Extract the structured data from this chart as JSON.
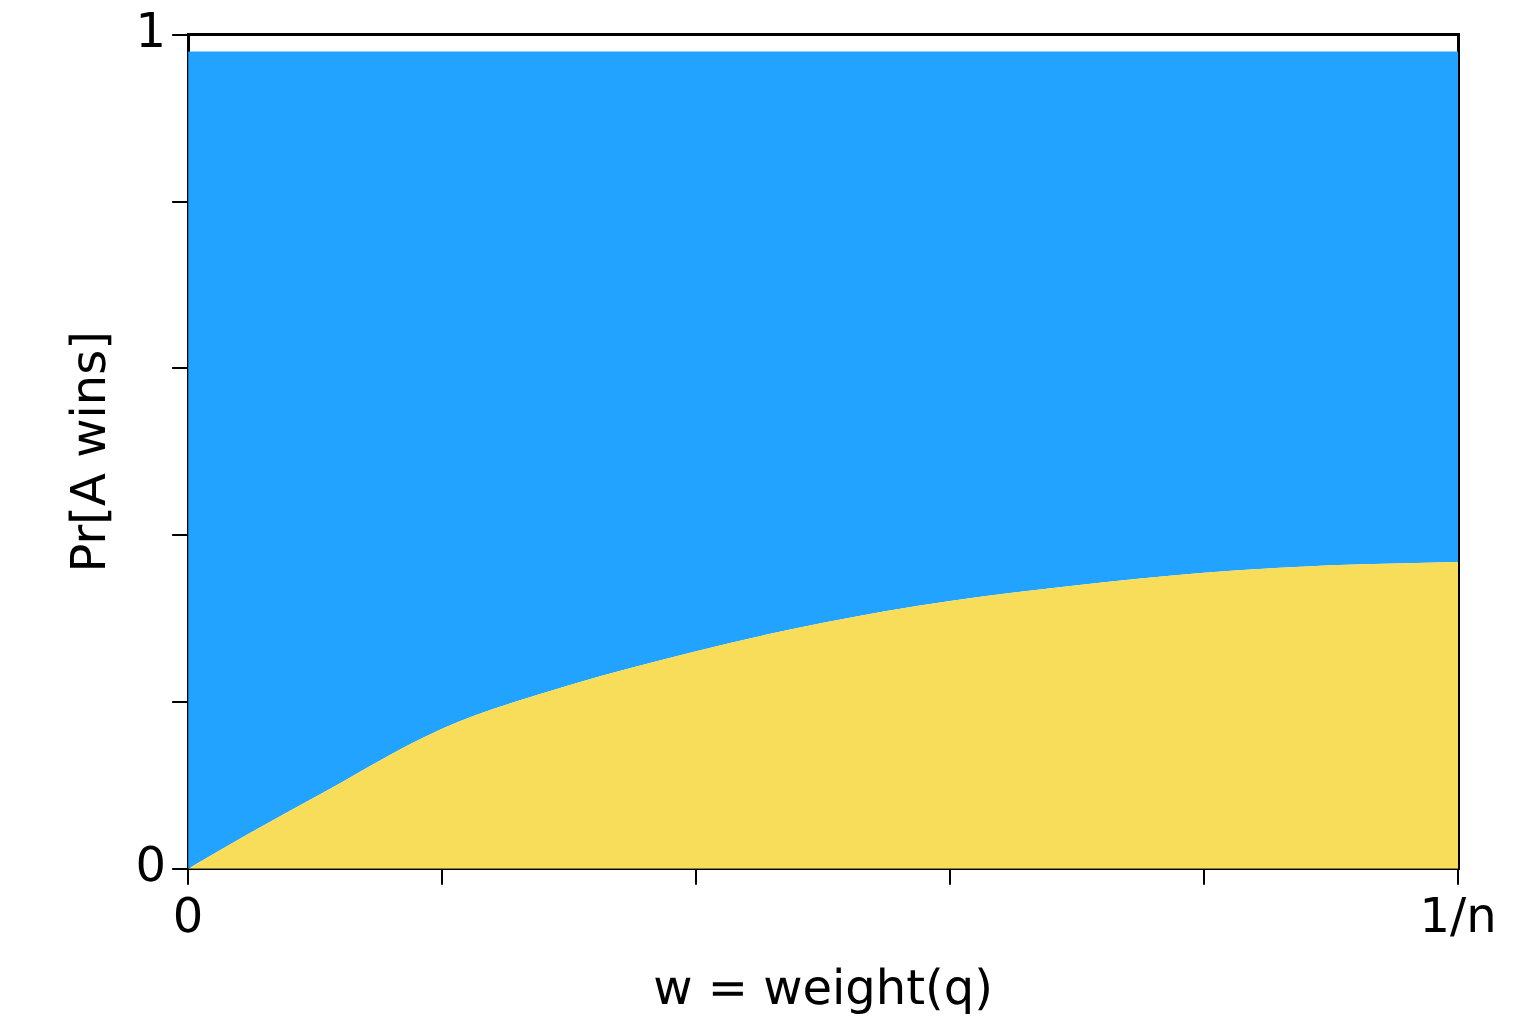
{
  "chart_data": {
    "type": "area",
    "xlabel": "w = weight(q)",
    "ylabel": "Pr[A wins]",
    "xlim": [
      0,
      1
    ],
    "xticks": [
      {
        "value": 0,
        "label": "0"
      },
      {
        "value": 0.2,
        "label": null
      },
      {
        "value": 0.4,
        "label": null
      },
      {
        "value": 0.6,
        "label": null
      },
      {
        "value": 0.8,
        "label": null
      },
      {
        "value": 1,
        "label": "1/n"
      }
    ],
    "ylim": [
      0,
      1
    ],
    "yticks": [
      {
        "value": 0,
        "label": "0"
      },
      {
        "value": 0.2,
        "label": null
      },
      {
        "value": 0.4,
        "label": null
      },
      {
        "value": 0.6,
        "label": null
      },
      {
        "value": 0.8,
        "label": null
      },
      {
        "value": 1,
        "label": "1"
      }
    ],
    "grid": false,
    "legend": false,
    "series": [
      {
        "color": "#f7dd5a",
        "x": [
          0,
          0.05,
          0.1,
          0.2,
          0.3,
          0.4,
          0.5,
          0.6,
          0.7,
          0.8,
          0.9,
          1
        ],
        "values": [
          0,
          0.044,
          0.086,
          0.168,
          0.22,
          0.261,
          0.295,
          0.321,
          0.34,
          0.355,
          0.364,
          0.368
        ]
      },
      {
        "color": "#21a3ff",
        "x": [
          0,
          0.05,
          0.1,
          0.2,
          0.3,
          0.4,
          0.5,
          0.6,
          0.7,
          0.8,
          0.9,
          1
        ],
        "values": [
          0.98,
          0.98,
          0.98,
          0.98,
          0.98,
          0.98,
          0.98,
          0.98,
          0.98,
          0.98,
          0.98,
          0.98
        ]
      }
    ]
  }
}
